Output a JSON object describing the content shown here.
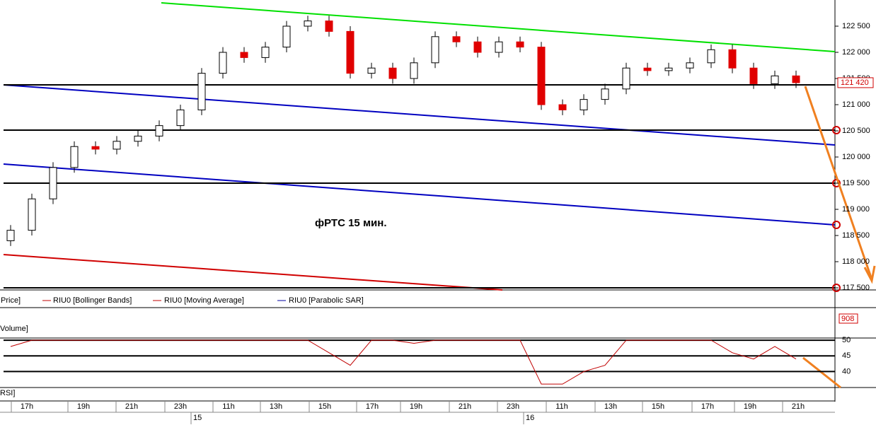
{
  "chart_data": {
    "type": "candlestick",
    "title": "фРТС   15 мин.",
    "legend": [
      "Price]",
      "RIU0 [Bollinger Bands]",
      "RIU0 [Moving Average]",
      "RIU0 [Parabolic SAR]"
    ],
    "up_color": "#ffffff",
    "down_color": "#e00000",
    "open": [
      118400,
      118600,
      119200,
      119800,
      120200,
      120150,
      120300,
      120400,
      120600,
      120900,
      121600,
      122000,
      121900,
      122100,
      122500,
      122600,
      122400,
      121600,
      121700,
      121500,
      121800,
      122300,
      122200,
      122000,
      122200,
      122100,
      121000,
      120900,
      121100,
      121300,
      121700,
      121650,
      121700,
      121800,
      122050,
      121700,
      121400,
      121550
    ],
    "high": [
      118700,
      119300,
      119900,
      120300,
      120300,
      120400,
      120500,
      120700,
      121000,
      121700,
      122100,
      122100,
      122200,
      122600,
      122700,
      122700,
      122500,
      121800,
      121800,
      121900,
      122400,
      122400,
      122300,
      122300,
      122300,
      122200,
      121100,
      121200,
      121400,
      121800,
      121800,
      121800,
      121900,
      122150,
      122150,
      121800,
      121650,
      121650
    ],
    "low": [
      118300,
      118500,
      119100,
      119700,
      120050,
      120050,
      120200,
      120300,
      120500,
      120800,
      121500,
      121800,
      121800,
      122000,
      122400,
      122300,
      121500,
      121500,
      121400,
      121400,
      121700,
      122100,
      121900,
      121900,
      122000,
      120900,
      120800,
      120800,
      121000,
      121200,
      121550,
      121550,
      121600,
      121700,
      121600,
      121300,
      121300,
      121320
    ],
    "close": [
      118600,
      119200,
      119800,
      120200,
      120150,
      120300,
      120400,
      120600,
      120900,
      121600,
      122000,
      121900,
      122100,
      122500,
      122600,
      122400,
      121600,
      121700,
      121500,
      121800,
      122300,
      122200,
      122000,
      122200,
      122100,
      121000,
      120900,
      121100,
      121300,
      121700,
      121650,
      121700,
      121800,
      122050,
      121700,
      121400,
      121550,
      121420
    ],
    "ylim": [
      117460,
      123000
    ],
    "yticks": [
      {
        "value": 117500,
        "label": "117 500"
      },
      {
        "value": 118000,
        "label": "118 000"
      },
      {
        "value": 118500,
        "label": "118 500"
      },
      {
        "value": 119000,
        "label": "119 000"
      },
      {
        "value": 119500,
        "label": "119 500"
      },
      {
        "value": 120000,
        "label": "120 000"
      },
      {
        "value": 120500,
        "label": "120 500"
      },
      {
        "value": 121000,
        "label": "121 000"
      },
      {
        "value": 121500,
        "label": "121 500"
      },
      {
        "value": 122000,
        "label": "122 000"
      },
      {
        "value": 122500,
        "label": "122 500"
      }
    ],
    "last_price": {
      "value": 121420,
      "label": "121 420"
    },
    "volume_label": "Volume]",
    "volume_last": 908,
    "rsi_label": "RSI]",
    "rsi": [
      48,
      50,
      50,
      50,
      50,
      50,
      50,
      50,
      50,
      50,
      50,
      50,
      50,
      50,
      50,
      46,
      42,
      50,
      50,
      49,
      50,
      50,
      50,
      50,
      50,
      36,
      36,
      40,
      42,
      50,
      50,
      50,
      50,
      50,
      46,
      44,
      48,
      44
    ],
    "rsi_ylim": [
      34.9,
      50.7
    ],
    "rsi_yticks": [
      40,
      45,
      50
    ],
    "time_labels": [
      "17h",
      "19h",
      "21h",
      "23h",
      "11h",
      "13h",
      "15h",
      "17h",
      "19h",
      "21h",
      "23h",
      "11h",
      "13h",
      "15h",
      "17h",
      "19h",
      "21h"
    ],
    "date_labels": [
      "15",
      "16"
    ]
  }
}
